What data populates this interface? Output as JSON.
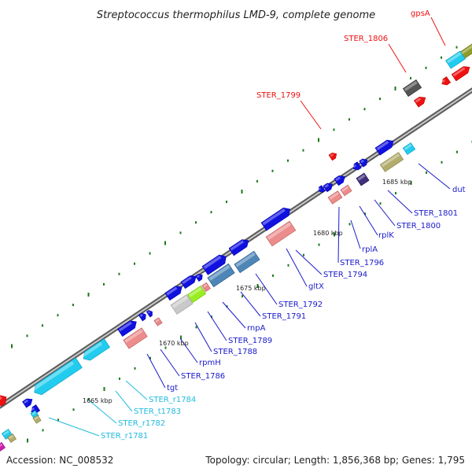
{
  "title": "Streptococcus thermophilus LMD-9, complete genome",
  "footer": {
    "accession": "Accession: NC_008532",
    "summary": "Topology: circular; Length: 1,856,368 bp; Genes: 1,795"
  },
  "scale_labels": [
    "1665 kbp",
    "1670 kbp",
    "1675 kbp",
    "1680 kbp",
    "1685 kbp"
  ],
  "colors": {
    "backbone": "#888888",
    "blue_gene": "#1010e0",
    "trna": "#22ccee",
    "red_label": "#ee1111",
    "blue_label": "#1a1acc",
    "cyan_label": "#22bbdd",
    "tick": "#1a7a1a"
  },
  "gene_labels": {
    "gpsA": "gpsA",
    "ster_1806": "STER_1806",
    "ster_1799": "STER_1799",
    "dut": "dut",
    "ster_1801": "STER_1801",
    "ster_1800": "STER_1800",
    "rplK": "rplK",
    "rplA": "rplA",
    "ster_1796": "STER_1796",
    "ster_1794": "STER_1794",
    "gltX": "gltX",
    "ster_1792": "STER_1792",
    "ster_1791": "STER_1791",
    "rnpA": "rnpA",
    "ster_1789": "STER_1789",
    "ster_1788": "STER_1788",
    "rpmH": "rpmH",
    "ster_1786": "STER_1786",
    "tgt": "tgt",
    "ster_r1784": "STER_r1784",
    "ster_t1783": "STER_t1783",
    "ster_r1782": "STER_r1782",
    "ster_r1781": "STER_r1781"
  }
}
